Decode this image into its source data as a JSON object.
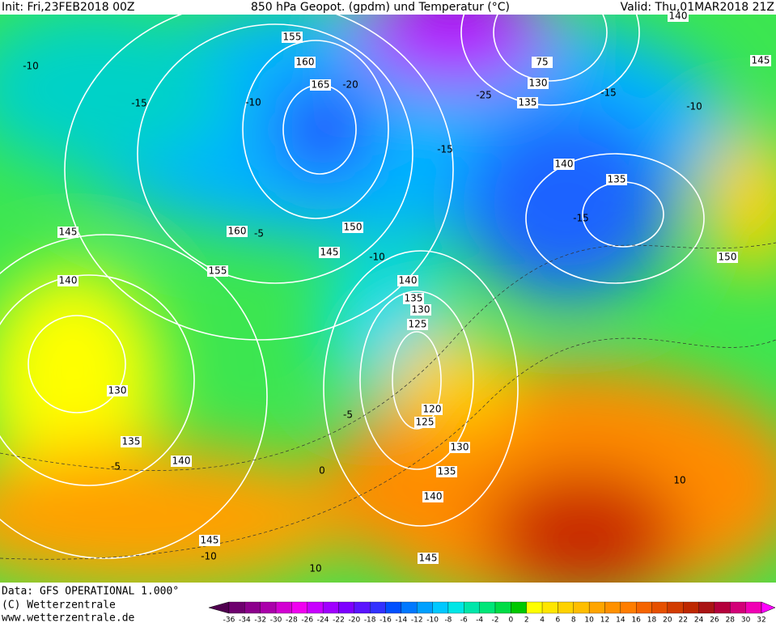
{
  "header": {
    "init": "Init: Fri,23FEB2018 00Z",
    "title": "850 hPa Geopot. (gpdm) und Temperatur (°C)",
    "valid": "Valid: Thu,01MAR2018 21Z"
  },
  "footer": {
    "data": "Data: GFS OPERATIONAL 1.000°",
    "copyright": "(C) Wetterzentrale",
    "url": "www.wetterzentrale.de"
  },
  "legend": {
    "labels": [
      -36,
      -34,
      -32,
      -30,
      -28,
      -26,
      -24,
      -22,
      -20,
      -18,
      -16,
      -14,
      -12,
      -10,
      -8,
      -6,
      -4,
      -2,
      0,
      2,
      4,
      6,
      8,
      10,
      12,
      14,
      16,
      18,
      20,
      22,
      24,
      26,
      28,
      30,
      32
    ],
    "colors": [
      "#50004f",
      "#6e006e",
      "#8c008c",
      "#aa00aa",
      "#d200d2",
      "#f000f0",
      "#c800ff",
      "#a000ff",
      "#7d00ff",
      "#5a14ff",
      "#3232ff",
      "#0050ff",
      "#0078ff",
      "#00a0ff",
      "#00c8ff",
      "#00e6e6",
      "#00e6aa",
      "#00e678",
      "#00dc46",
      "#00c800",
      "#ffff00",
      "#ffe600",
      "#ffd200",
      "#ffbe00",
      "#ffa500",
      "#ff9100",
      "#ff7d00",
      "#f56400",
      "#e65000",
      "#d23c00",
      "#be2800",
      "#aa1414",
      "#b4003c",
      "#d20078",
      "#f000b4",
      "#ff00ff"
    ]
  },
  "contour_labels": {
    "geopotential": [
      140,
      145,
      75,
      130,
      135,
      140,
      135,
      150,
      160,
      155,
      150,
      145,
      140,
      135,
      130,
      125,
      145,
      140,
      130,
      135,
      140,
      145,
      120,
      125,
      130,
      135,
      140,
      145,
      155,
      160,
      165
    ],
    "temperature": [
      -10,
      -15,
      -10,
      -20,
      -25,
      -15,
      -15,
      -10,
      -5,
      -10,
      -15,
      -5,
      -5,
      0,
      -10,
      10,
      10
    ]
  }
}
